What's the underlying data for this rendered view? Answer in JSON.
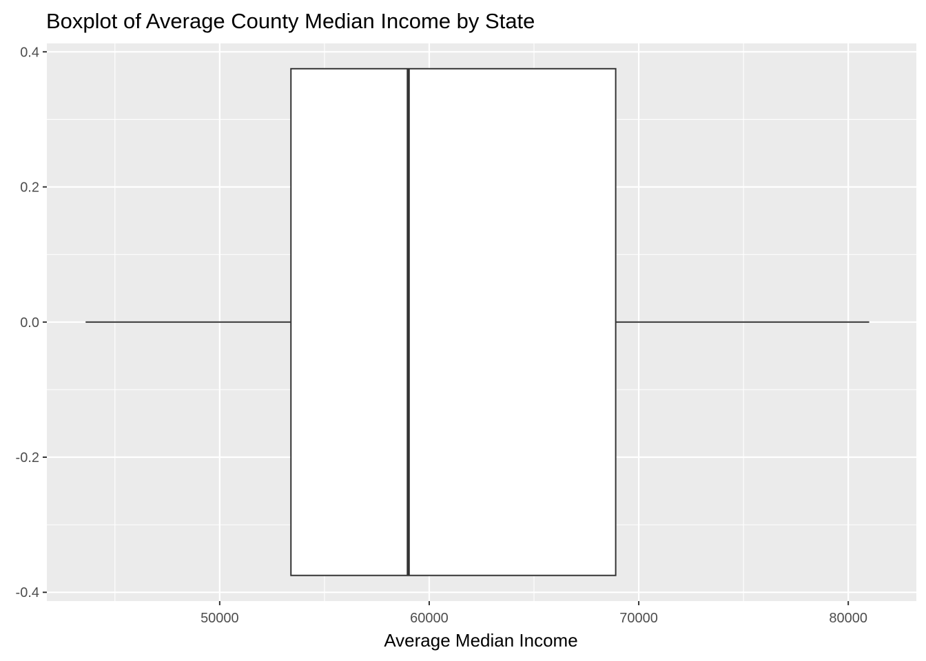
{
  "chart_data": {
    "type": "boxplot",
    "title": "Boxplot of Average County Median Income by State",
    "xlabel": "Average Median Income",
    "ylabel": "",
    "x_ticks": [
      50000,
      60000,
      70000,
      80000
    ],
    "y_ticks": [
      -0.4,
      -0.2,
      0.0,
      0.2,
      0.4
    ],
    "y_tick_labels": [
      "-0.4",
      "-0.2",
      "0.0",
      "0.2",
      "0.4"
    ],
    "xlim": [
      41750,
      83250
    ],
    "ylim": [
      -0.413,
      0.4125
    ],
    "grid": true,
    "colors": {
      "panel": "#ebebeb",
      "grid": "#ffffff",
      "box_fill": "#ffffff",
      "box_stroke": "#333333",
      "tick_text": "#4d4d4d"
    },
    "box": {
      "min": 43600,
      "q1": 53400,
      "median": 59000,
      "q3": 68900,
      "max": 81000,
      "y_low": -0.375,
      "y_high": 0.375
    }
  }
}
